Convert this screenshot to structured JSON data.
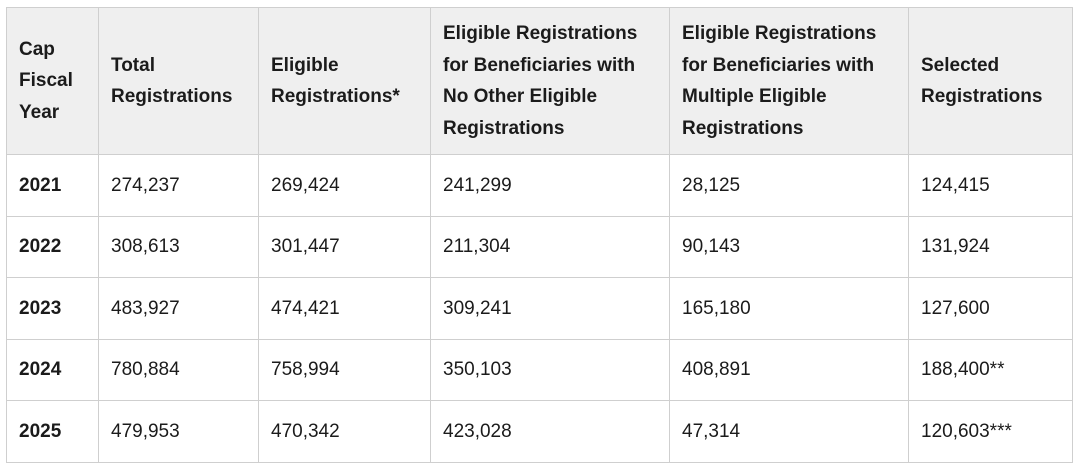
{
  "table": {
    "headers": [
      "Cap Fiscal Year",
      "Total Registrations",
      "Eligible Registrations*",
      "Eligible Registrations for Beneficiaries with No Other Eligible Registrations",
      "Eligible Registrations for Beneficiaries with Multiple Eligible Registrations",
      "Selected Registrations"
    ],
    "rows": [
      [
        "2021",
        "274,237",
        "269,424",
        "241,299",
        "28,125",
        "124,415"
      ],
      [
        "2022",
        "308,613",
        "301,447",
        "211,304",
        "90,143",
        "131,924"
      ],
      [
        "2023",
        "483,927",
        "474,421",
        "309,241",
        "165,180",
        "127,600"
      ],
      [
        "2024",
        "780,884",
        "758,994",
        "350,103",
        "408,891",
        "188,400**"
      ],
      [
        "2025",
        "479,953",
        "470,342",
        "423,028",
        "47,314",
        "120,603***"
      ]
    ]
  }
}
